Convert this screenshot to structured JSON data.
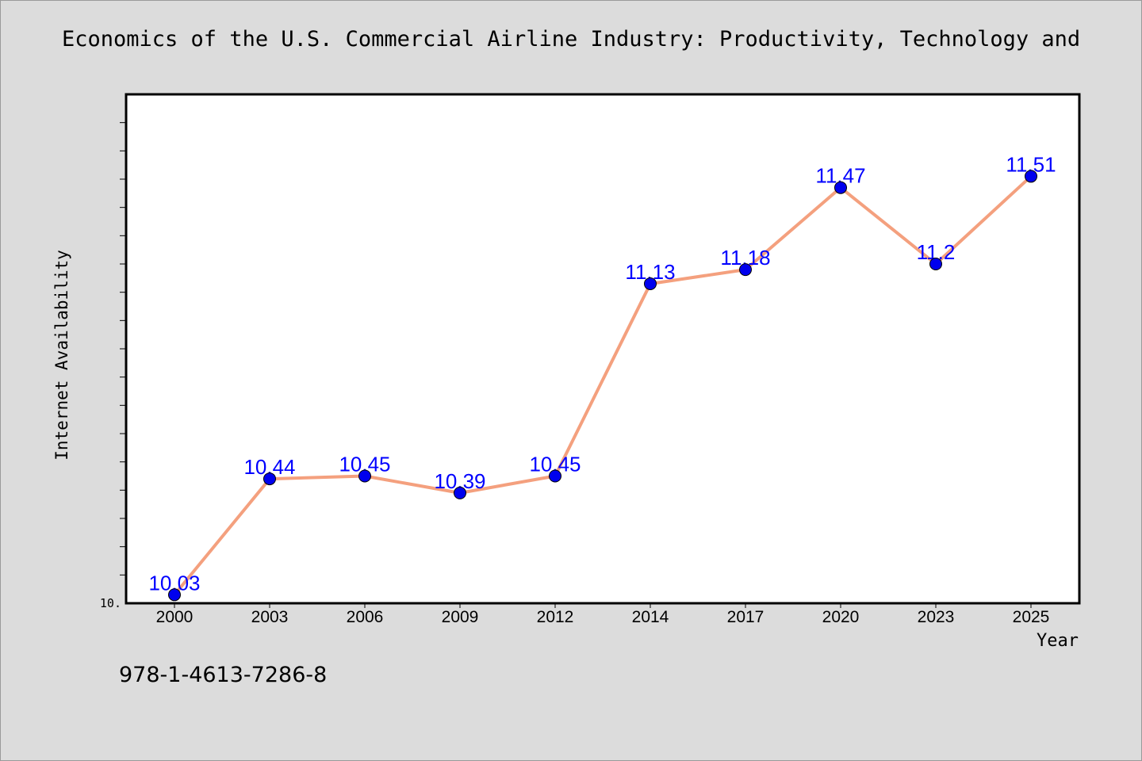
{
  "chart_data": {
    "type": "line",
    "title": "Economics of the U.S. Commercial Airline Industry: Productivity, Technology and",
    "xlabel": "Year",
    "ylabel": "Internet Availability",
    "categories": [
      "2000",
      "2003",
      "2006",
      "2009",
      "2012",
      "2014",
      "2017",
      "2020",
      "2023",
      "2025"
    ],
    "series": [
      {
        "values": [
          10.03,
          10.44,
          10.45,
          10.39,
          10.45,
          11.13,
          11.18,
          11.47,
          11.2,
          11.51
        ],
        "labels": [
          "10.03",
          "10.44",
          "10.45",
          "10.39",
          "10.45",
          "11.13",
          "11.18",
          "11.47",
          "11.2",
          "11.51"
        ],
        "line_color": "#f4a07e",
        "marker_color": "#0000ee",
        "label_color": "#0000ff"
      }
    ],
    "ylim": [
      10.0,
      11.8
    ],
    "y_tick_label": "10.",
    "grid": false,
    "legend": "none"
  },
  "footer": {
    "code": "978-1-4613-7286-8"
  }
}
